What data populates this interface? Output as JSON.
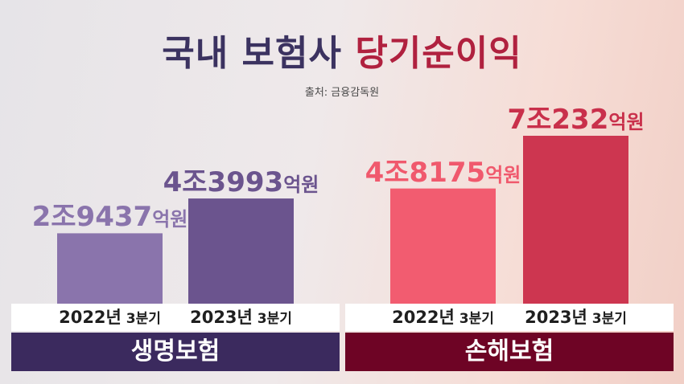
{
  "title": {
    "part1": "국내 보험사",
    "part2": "당기순이익"
  },
  "source": "출처: 금융감독원",
  "colors": {
    "life_light": "#8a74ac",
    "life_dark": "#6b548e",
    "life_band": "#3b2a5e",
    "nonlife_light": "#f25c70",
    "nonlife_dark": "#cd3650",
    "nonlife_band": "#6e0425",
    "life_text": "#8a74ac",
    "life_text_dark": "#6b548e",
    "nonlife_text": "#f0596d",
    "nonlife_text_dark": "#c9304b"
  },
  "chart_data": {
    "type": "bar",
    "unit": "억원",
    "groups": [
      {
        "name": "생명보험",
        "bars": [
          {
            "category": "2022년 3분기",
            "value": 29437,
            "label_main": "2조9437",
            "label_unit": "억원"
          },
          {
            "category": "2023년 3분기",
            "value": 43993,
            "label_main": "4조3993",
            "label_unit": "억원"
          }
        ]
      },
      {
        "name": "손해보험",
        "bars": [
          {
            "category": "2022년 3분기",
            "value": 48175,
            "label_main": "4조8175",
            "label_unit": "억원"
          },
          {
            "category": "2023년 3분기",
            "value": 70232,
            "label_main": "7조232",
            "label_unit": "억원"
          }
        ]
      }
    ]
  }
}
